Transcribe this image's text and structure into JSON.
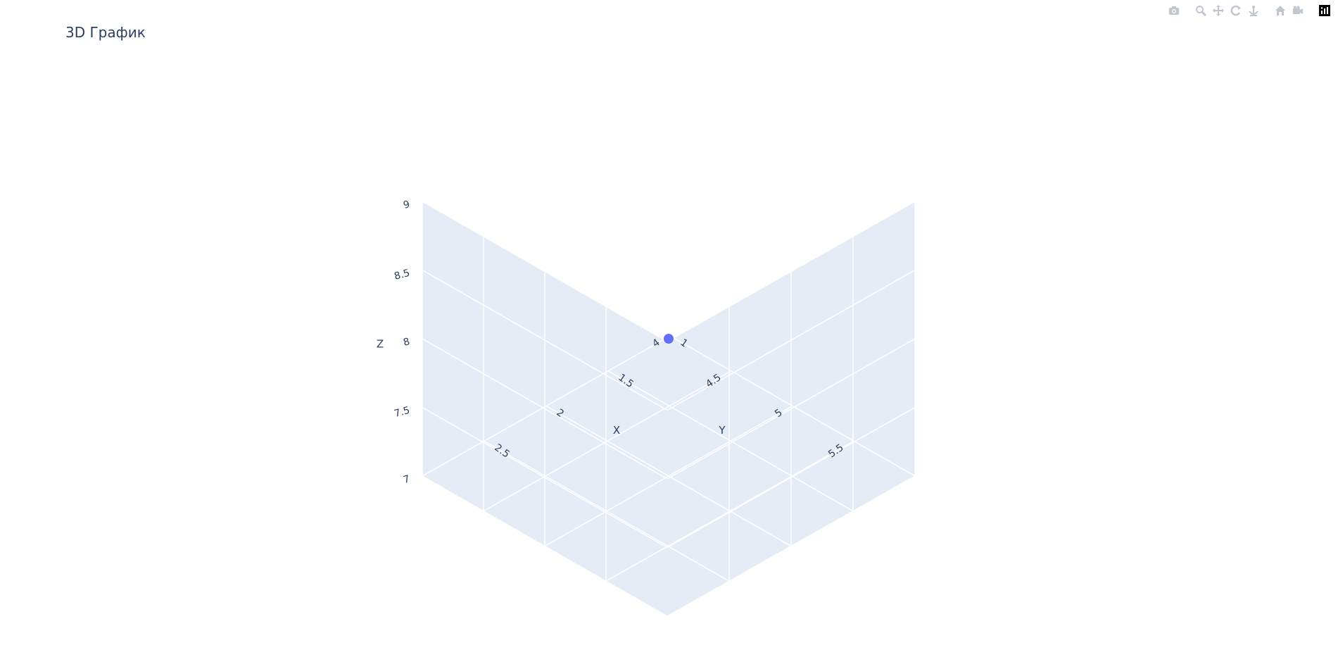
{
  "title": "3D График",
  "modebar": {
    "buttons": [
      {
        "name": "camera-icon"
      },
      {
        "name": "zoom-icon"
      },
      {
        "name": "pan-icon"
      },
      {
        "name": "orbit-rotation-icon"
      },
      {
        "name": "turntable-rotation-icon"
      },
      {
        "name": "reset-camera-home-icon"
      },
      {
        "name": "reset-camera-last-save-icon"
      },
      {
        "name": "plotly-logo-icon"
      }
    ]
  },
  "chart_data": {
    "type": "scatter",
    "mode": "3d-markers",
    "x": [
      2
    ],
    "y": [
      5
    ],
    "z": [
      8
    ],
    "marker_color": "#636efa",
    "xlabel": "X",
    "ylabel": "Y",
    "zlabel": "Z",
    "xlim": [
      1,
      3
    ],
    "ylim": [
      4,
      6
    ],
    "zlim": [
      7,
      9
    ],
    "x_ticks": [
      "1",
      "1.5",
      "2",
      "2.5"
    ],
    "y_ticks": [
      "4",
      "4.5",
      "5",
      "5.5"
    ],
    "z_ticks": [
      "7",
      "7.5",
      "8",
      "8.5",
      "9"
    ],
    "grid": true,
    "pane_color": "#e5ecf6",
    "grid_color": "#ffffff"
  }
}
